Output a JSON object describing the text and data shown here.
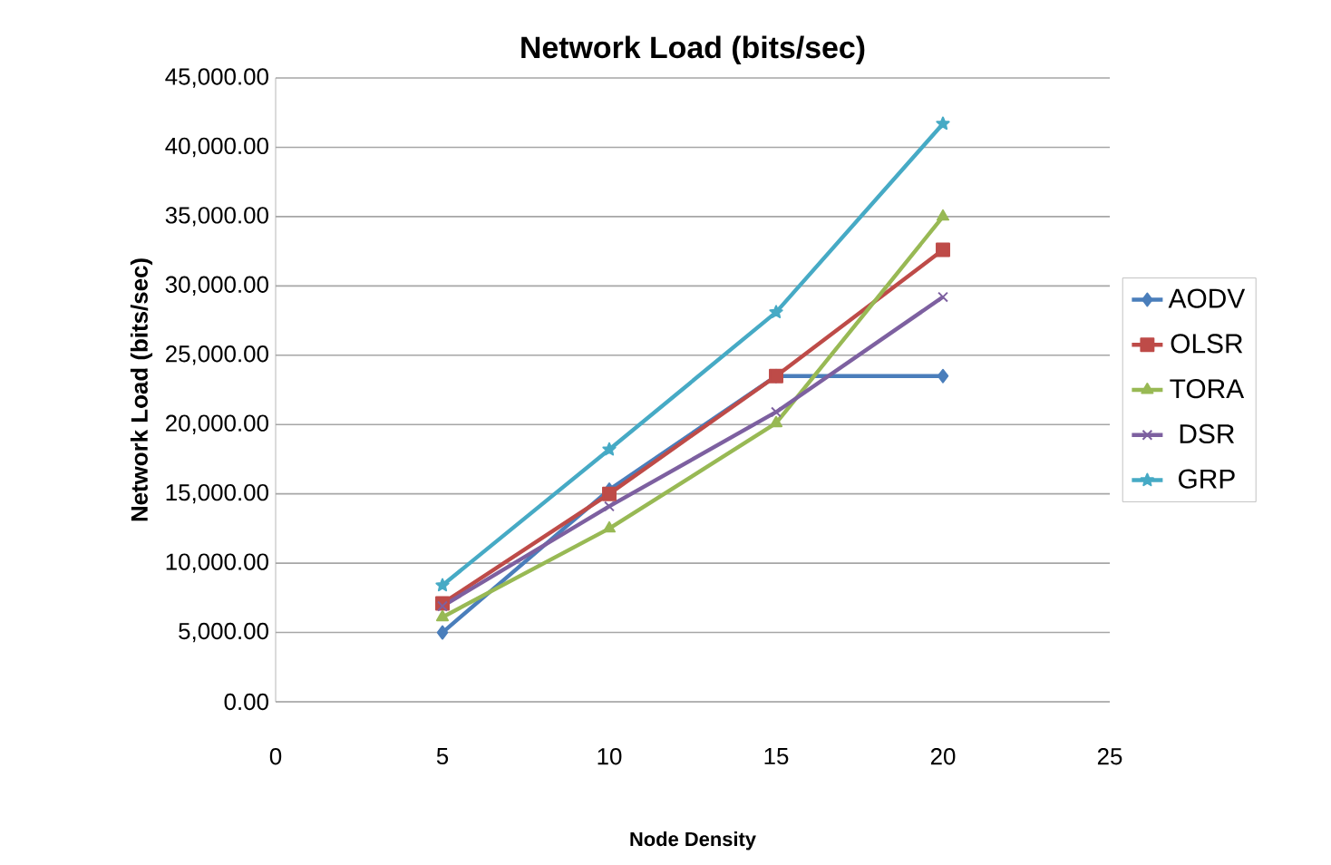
{
  "chart_data": {
    "type": "line",
    "title": "Network Load (bits/sec)",
    "xlabel": "Node Density",
    "ylabel": "Network Load (bits/sec)",
    "x": [
      5,
      10,
      15,
      20
    ],
    "series": [
      {
        "name": "AODV",
        "color": "#4a7ebb",
        "marker": "diamond",
        "values": [
          5000,
          15300,
          23500,
          23500
        ]
      },
      {
        "name": "OLSR",
        "color": "#be4b48",
        "marker": "square",
        "values": [
          7100,
          15000,
          23500,
          32600
        ]
      },
      {
        "name": "TORA",
        "color": "#98b954",
        "marker": "triangle",
        "values": [
          6100,
          12500,
          20100,
          35000
        ]
      },
      {
        "name": "DSR",
        "color": "#7d60a0",
        "marker": "cross",
        "values": [
          6900,
          14100,
          20900,
          29200
        ]
      },
      {
        "name": "GRP",
        "color": "#46aac5",
        "marker": "star",
        "values": [
          8400,
          18200,
          28100,
          41700
        ]
      }
    ],
    "xlim": [
      0,
      25
    ],
    "xticks": [
      0,
      5,
      10,
      15,
      20,
      25
    ],
    "ylim": [
      0,
      45000
    ],
    "yticks": [
      {
        "value": 0,
        "label": "0.00"
      },
      {
        "value": 5000,
        "label": "5,000.00"
      },
      {
        "value": 10000,
        "label": "10,000.00"
      },
      {
        "value": 15000,
        "label": "15,000.00"
      },
      {
        "value": 20000,
        "label": "20,000.00"
      },
      {
        "value": 25000,
        "label": "25,000.00"
      },
      {
        "value": 30000,
        "label": "30,000.00"
      },
      {
        "value": 35000,
        "label": "35,000.00"
      },
      {
        "value": 40000,
        "label": "40,000.00"
      },
      {
        "value": 45000,
        "label": "45,000.00"
      }
    ],
    "grid": "y",
    "legend": "right",
    "line_style": "solid"
  }
}
